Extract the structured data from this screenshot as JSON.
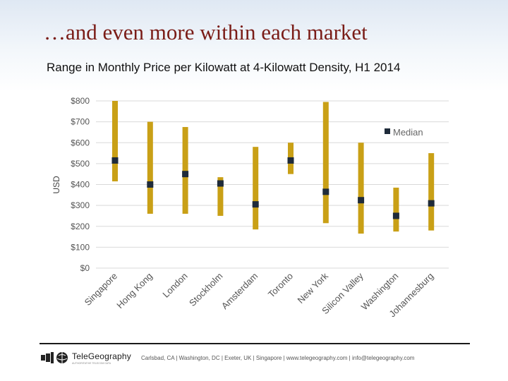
{
  "slide": {
    "title": "…and even more within each market",
    "subtitle": "Range in Monthly Price per Kilowatt at 4-Kilowatt Density, H1 2014"
  },
  "footer": {
    "logo_text": "TeleGeography",
    "logo_tagline": "AUTHORITATIVE TELECOM DATA",
    "contact": "Carlsbad, CA | Washington, DC | Exeter, UK | Singapore | www.telegeography.com | info@telegeography.com"
  },
  "colors": {
    "range_bar": "#c9a016",
    "median_marker": "#1f2b3a",
    "grid": "#d9d9d9",
    "title": "#7a1c17"
  },
  "chart_data": {
    "type": "range",
    "title": "",
    "xlabel": "",
    "ylabel": "USD",
    "ylim": [
      0,
      800
    ],
    "yticks": [
      0,
      100,
      200,
      300,
      400,
      500,
      600,
      700,
      800
    ],
    "ytick_labels": [
      "$0",
      "$100",
      "$200",
      "$300",
      "$400",
      "$500",
      "$600",
      "$700",
      "$800"
    ],
    "grid": true,
    "legend": {
      "position": "top-right",
      "label": "Median"
    },
    "categories": [
      "Singapore",
      "Hong Kong",
      "London",
      "Stockholm",
      "Amsterdam",
      "Toronto",
      "New York",
      "Silicon Valley",
      "Washington",
      "Johannesburg"
    ],
    "low": [
      415,
      260,
      260,
      250,
      185,
      450,
      215,
      165,
      175,
      180
    ],
    "high": [
      800,
      700,
      675,
      435,
      580,
      600,
      795,
      600,
      385,
      550
    ],
    "median": [
      515,
      400,
      450,
      405,
      305,
      515,
      365,
      325,
      250,
      310
    ]
  }
}
